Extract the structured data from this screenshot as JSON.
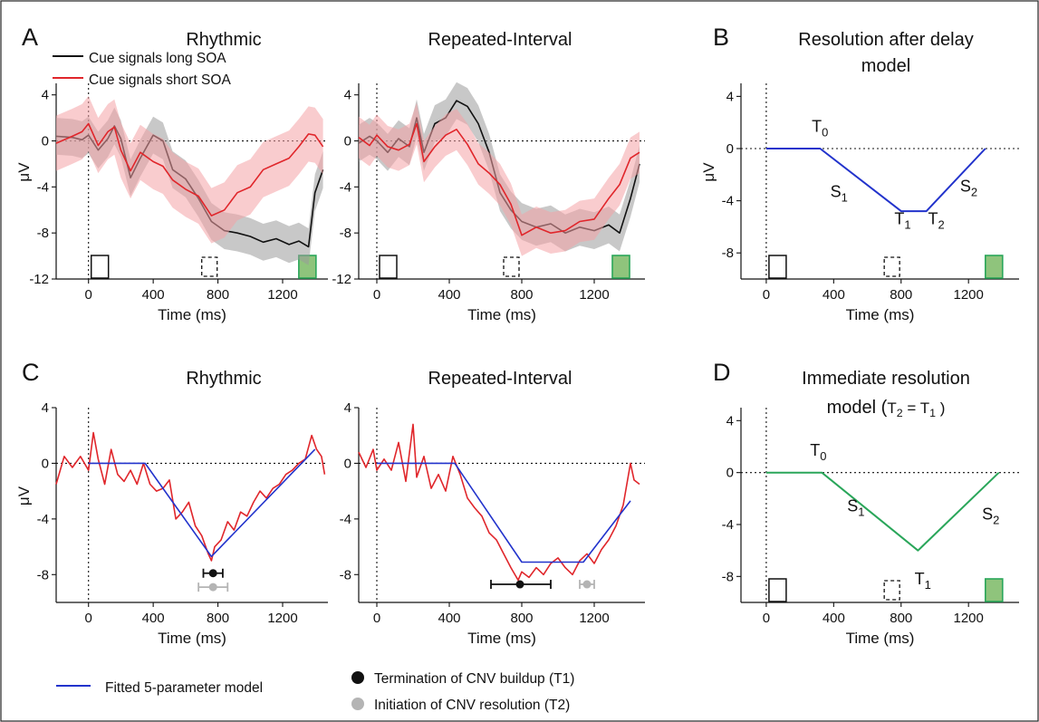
{
  "figure": {
    "panel_letters": [
      "A",
      "B",
      "C",
      "D"
    ],
    "legend_A": {
      "long": "Cue signals long SOA",
      "short": "Cue signals short SOA"
    },
    "legend_C": {
      "model": "Fitted 5-parameter model",
      "t1": "Termination of CNV buildup (T1)",
      "t2": "Initiation of CNV resolution (T2)"
    },
    "colors": {
      "long": "#111111",
      "long_band": "#9a9a9a",
      "short": "#e0262b",
      "short_band": "#f4a3a5",
      "model_blue": "#2233cc",
      "model_green": "#2aa65a",
      "gray_marker": "#b4b4b4",
      "target_fill": "#8fc47c"
    }
  },
  "chart_data": [
    {
      "id": "A1",
      "type": "line",
      "title": "Rhythmic",
      "xlabel": "Time (ms)",
      "ylabel": "μV",
      "xlim": [
        -200,
        1480
      ],
      "ylim": [
        -12,
        5
      ],
      "xticks": [
        0,
        400,
        800,
        1200
      ],
      "yticks": [
        4,
        0,
        -4,
        -8,
        -12
      ],
      "series": [
        {
          "name": "Cue signals long SOA",
          "band": 1.6,
          "x": [
            -200,
            -100,
            -40,
            0,
            60,
            120,
            160,
            200,
            260,
            320,
            400,
            460,
            520,
            600,
            680,
            760,
            840,
            920,
            1000,
            1080,
            1160,
            1240,
            1300,
            1360,
            1400,
            1450
          ],
          "y": [
            0.4,
            0.3,
            0.1,
            0.5,
            -0.8,
            0.2,
            1.3,
            0.2,
            -3.2,
            -1.5,
            0.5,
            0.0,
            -2.5,
            -3.3,
            -5.0,
            -7.0,
            -7.8,
            -8.0,
            -8.3,
            -8.8,
            -8.5,
            -9.0,
            -8.7,
            -9.2,
            -4.5,
            -2.5
          ]
        },
        {
          "name": "Cue signals short SOA",
          "band": 2.4,
          "x": [
            -200,
            -100,
            -40,
            0,
            60,
            120,
            160,
            200,
            260,
            320,
            400,
            460,
            520,
            600,
            680,
            760,
            840,
            920,
            1000,
            1080,
            1160,
            1240,
            1300,
            1360,
            1400,
            1450
          ],
          "y": [
            -0.2,
            0.4,
            0.8,
            1.5,
            -0.4,
            0.8,
            1.2,
            -0.8,
            -2.6,
            -1.0,
            -1.8,
            -2.2,
            -3.4,
            -4.2,
            -4.8,
            -6.5,
            -6.0,
            -4.5,
            -4.0,
            -2.5,
            -2.0,
            -1.5,
            -0.5,
            0.6,
            0.5,
            -0.5
          ]
        }
      ]
    },
    {
      "id": "A2",
      "type": "line",
      "title": "Repeated-Interval",
      "xlabel": "Time (ms)",
      "ylabel": "",
      "xlim": [
        -100,
        1480
      ],
      "ylim": [
        -12,
        5
      ],
      "xticks": [
        0,
        400,
        800,
        1200
      ],
      "yticks": [
        4,
        0,
        -4,
        -8,
        -12
      ],
      "series": [
        {
          "name": "Cue signals long SOA",
          "band": 1.6,
          "x": [
            -100,
            -40,
            0,
            60,
            120,
            180,
            220,
            260,
            320,
            380,
            440,
            500,
            560,
            620,
            680,
            740,
            800,
            880,
            960,
            1040,
            1120,
            1200,
            1280,
            1340,
            1400,
            1450
          ],
          "y": [
            -0.2,
            0.4,
            0.0,
            -1.0,
            0.2,
            -0.5,
            2.0,
            -1.0,
            1.5,
            2.0,
            3.5,
            3.0,
            1.5,
            -1.0,
            -4.5,
            -6.0,
            -7.0,
            -7.5,
            -7.2,
            -8.0,
            -7.5,
            -7.8,
            -7.3,
            -8.0,
            -5.0,
            -2.0
          ]
        },
        {
          "name": "Cue signals short SOA",
          "band": 1.8,
          "x": [
            -100,
            -40,
            0,
            60,
            120,
            180,
            220,
            260,
            320,
            380,
            440,
            500,
            560,
            620,
            680,
            740,
            800,
            880,
            960,
            1040,
            1120,
            1200,
            1280,
            1340,
            1400,
            1450
          ],
          "y": [
            0.3,
            -0.4,
            0.5,
            -0.5,
            -0.8,
            -0.3,
            1.5,
            -1.8,
            -0.5,
            0.5,
            1.0,
            -0.3,
            -2.0,
            -2.8,
            -3.8,
            -5.5,
            -8.2,
            -7.5,
            -8.0,
            -7.8,
            -7.0,
            -6.8,
            -5.0,
            -3.8,
            -1.5,
            -1.0
          ]
        }
      ]
    },
    {
      "id": "B",
      "type": "line",
      "title": "Resolution after delay",
      "subtitle": "model",
      "xlabel": "Time (ms)",
      "ylabel": "μV",
      "xlim": [
        -150,
        1500
      ],
      "ylim": [
        -10,
        5
      ],
      "xticks": [
        0,
        400,
        800,
        1200
      ],
      "yticks": [
        4,
        0,
        -4,
        -8
      ],
      "series": [
        {
          "name": "",
          "x": [
            0,
            320,
            800,
            950,
            1300
          ],
          "y": [
            0,
            0,
            -4.8,
            -4.8,
            0
          ]
        }
      ],
      "annotations": [
        {
          "label": "T",
          "sub": "0",
          "x": 270,
          "y": 1.3
        },
        {
          "label": "S",
          "sub": "1",
          "x": 380,
          "y": -3.7
        },
        {
          "label": "T",
          "sub": "1",
          "x": 760,
          "y": -5.8
        },
        {
          "label": "T",
          "sub": "2",
          "x": 960,
          "y": -5.8
        },
        {
          "label": "S",
          "sub": "2",
          "x": 1150,
          "y": -3.3
        }
      ]
    },
    {
      "id": "C1",
      "type": "line",
      "title": "Rhythmic",
      "xlabel": "Time (ms)",
      "ylabel": "μV",
      "xlim": [
        -200,
        1480
      ],
      "ylim": [
        -10,
        4
      ],
      "xticks": [
        0,
        400,
        800,
        1200
      ],
      "yticks": [
        4,
        0,
        -4,
        -8
      ],
      "series": [
        {
          "name": "",
          "x": [
            -200,
            -150,
            -100,
            -50,
            0,
            30,
            60,
            100,
            140,
            180,
            220,
            260,
            300,
            340,
            380,
            420,
            460,
            500,
            540,
            580,
            620,
            660,
            700,
            740,
            760,
            780,
            820,
            860,
            900,
            940,
            980,
            1020,
            1060,
            1100,
            1140,
            1180,
            1220,
            1260,
            1300,
            1340,
            1380,
            1410,
            1440,
            1460
          ],
          "y": [
            -1.5,
            0.5,
            -0.3,
            0.5,
            -0.5,
            2.2,
            0.3,
            -1.5,
            1.0,
            -0.8,
            -1.3,
            -0.5,
            -1.5,
            0.0,
            -1.5,
            -2.0,
            -1.8,
            -1.2,
            -4.0,
            -3.5,
            -2.8,
            -4.5,
            -5.2,
            -6.5,
            -7.0,
            -6.0,
            -5.5,
            -4.2,
            -4.8,
            -3.5,
            -3.8,
            -2.8,
            -2.0,
            -2.5,
            -1.8,
            -1.5,
            -0.8,
            -0.5,
            0.0,
            0.3,
            2.0,
            1.0,
            0.5,
            -0.8
          ]
        },
        {
          "name": "",
          "x": [
            0,
            350,
            760,
            1400
          ],
          "y": [
            0,
            0,
            -6.7,
            1.0
          ]
        }
      ],
      "markers": [
        {
          "x": 770,
          "y": -7.9,
          "err": [
            710,
            830
          ],
          "color": "black"
        },
        {
          "x": 770,
          "y": -8.9,
          "err": [
            680,
            860
          ],
          "color": "gray"
        }
      ]
    },
    {
      "id": "C2",
      "type": "line",
      "title": "Repeated-Interval",
      "xlabel": "Time (ms)",
      "ylabel": "",
      "xlim": [
        -100,
        1480
      ],
      "ylim": [
        -10,
        4
      ],
      "xticks": [
        0,
        400,
        800,
        1200
      ],
      "yticks": [
        4,
        0,
        -4,
        -8
      ],
      "series": [
        {
          "name": "",
          "x": [
            -100,
            -60,
            -20,
            0,
            40,
            80,
            120,
            160,
            200,
            220,
            260,
            300,
            340,
            380,
            420,
            460,
            500,
            540,
            580,
            620,
            660,
            700,
            740,
            780,
            800,
            840,
            880,
            920,
            960,
            1000,
            1040,
            1080,
            1120,
            1160,
            1200,
            1240,
            1280,
            1320,
            1360,
            1400,
            1420,
            1450
          ],
          "y": [
            0.8,
            -0.3,
            1.0,
            -0.5,
            0.3,
            -0.5,
            1.5,
            -1.3,
            2.8,
            -1.0,
            0.5,
            -1.8,
            -0.8,
            -2.0,
            0.5,
            -0.8,
            -2.5,
            -3.2,
            -3.8,
            -5.0,
            -5.5,
            -6.5,
            -7.5,
            -8.4,
            -7.8,
            -8.2,
            -7.5,
            -8.0,
            -7.2,
            -6.8,
            -7.5,
            -8.0,
            -7.0,
            -6.5,
            -7.2,
            -6.2,
            -5.5,
            -4.5,
            -3.0,
            0.0,
            -1.2,
            -1.5
          ]
        },
        {
          "name": "",
          "x": [
            0,
            430,
            800,
            1140,
            1400
          ],
          "y": [
            0,
            0,
            -7.1,
            -7.1,
            -2.7
          ]
        }
      ],
      "markers": [
        {
          "x": 790,
          "y": -8.7,
          "err": [
            630,
            960
          ],
          "color": "black"
        },
        {
          "x": 1160,
          "y": -8.7,
          "err": [
            1120,
            1200
          ],
          "color": "gray"
        }
      ]
    },
    {
      "id": "D",
      "type": "line",
      "title": "Immediate resolution",
      "subtitle": "model",
      "xlabel": "Time (ms)",
      "ylabel": "",
      "xlim": [
        -150,
        1500
      ],
      "ylim": [
        -10,
        5
      ],
      "xticks": [
        0,
        400,
        800,
        1200
      ],
      "yticks": [
        4,
        0,
        -4,
        -8
      ],
      "series": [
        {
          "name": "",
          "x": [
            0,
            330,
            900,
            1380
          ],
          "y": [
            0,
            0,
            -6,
            0
          ]
        }
      ],
      "annotations": [
        {
          "label": "T",
          "sub": "0",
          "x": 260,
          "y": 1.3
        },
        {
          "label": "S",
          "sub": "1",
          "x": 480,
          "y": -3.0
        },
        {
          "label": "T",
          "sub": "1",
          "x": 880,
          "y": -8.6
        },
        {
          "label": "S",
          "sub": "2",
          "x": 1280,
          "y": -3.6
        }
      ],
      "subtitle_note": {
        "a": "T",
        "a_sub": "2",
        "eq": " = ",
        "b": "T",
        "b_sub": "1"
      }
    }
  ]
}
